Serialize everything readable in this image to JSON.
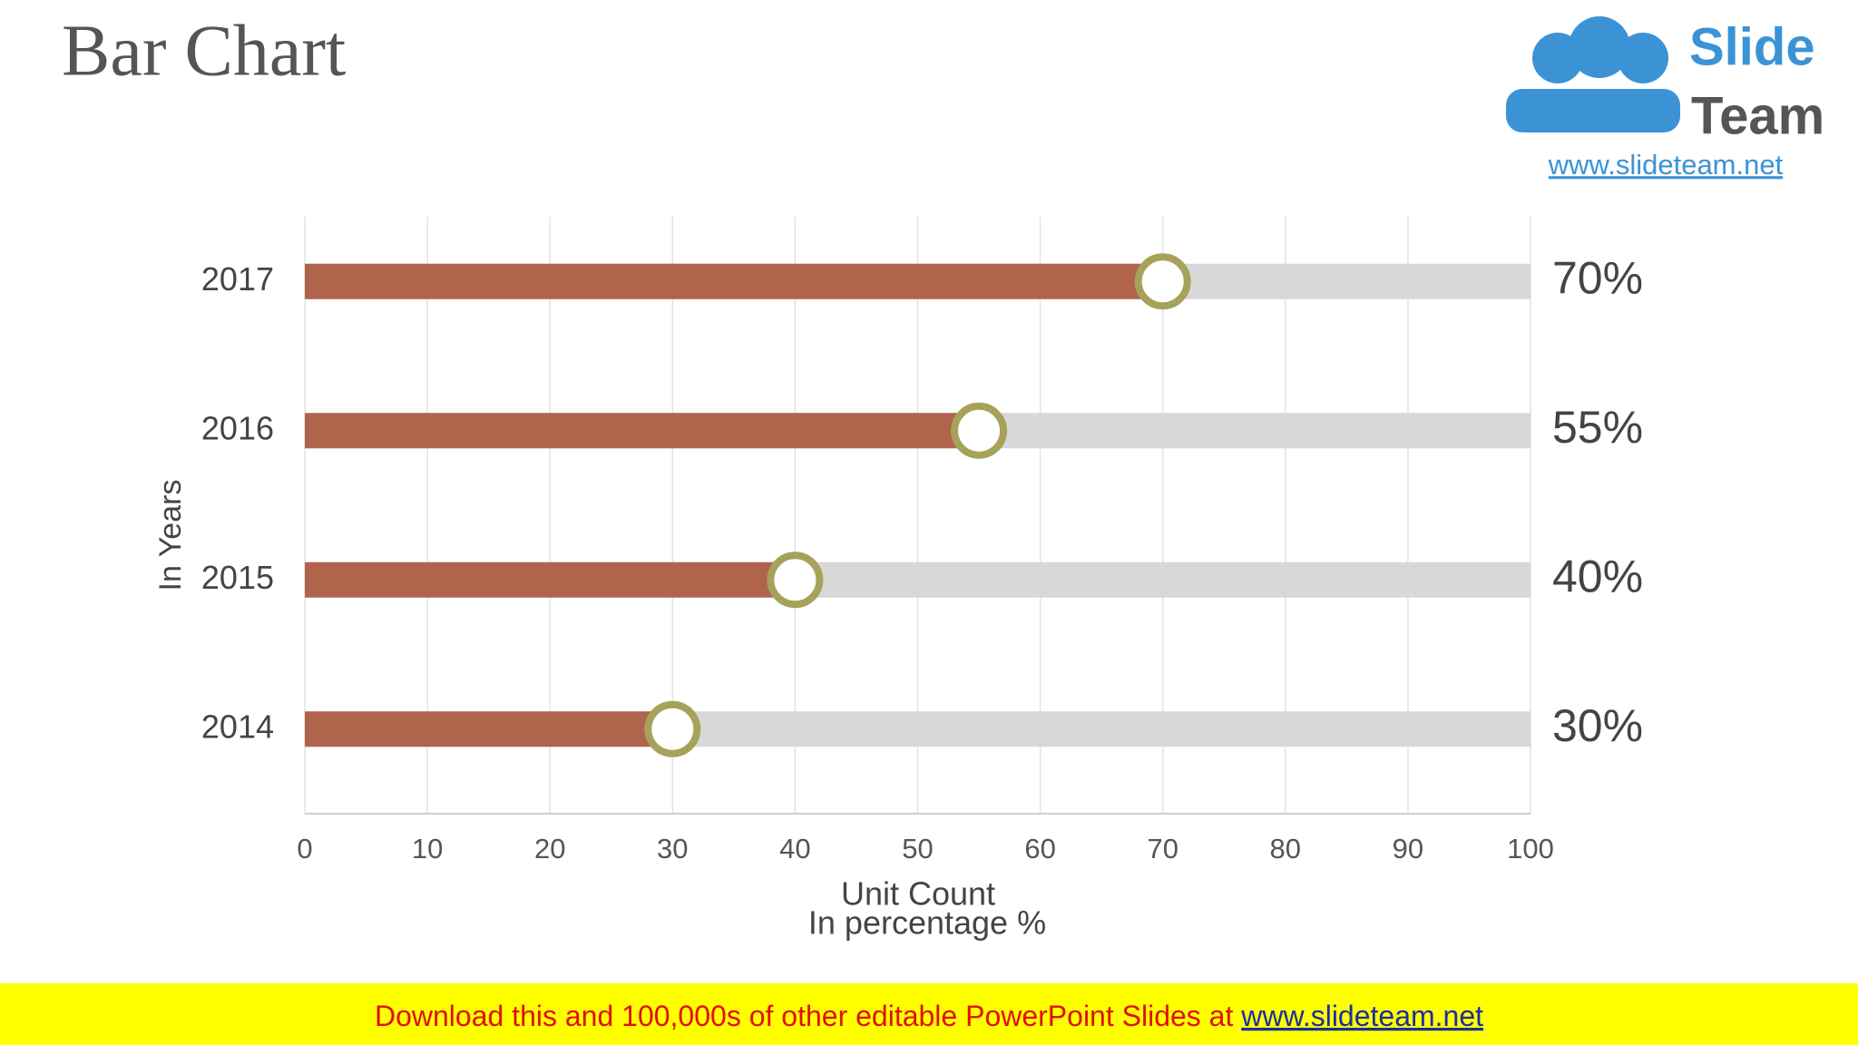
{
  "chart_data": {
    "type": "bar",
    "orientation": "horizontal",
    "title": "Bar Chart",
    "categories": [
      "2017",
      "2016",
      "2015",
      "2014"
    ],
    "values": [
      70,
      55,
      40,
      30
    ],
    "value_labels": [
      "70%",
      "55%",
      "40%",
      "30%"
    ],
    "color": "#b0644c",
    "track_color": "#d9d8d9",
    "marker_color": "#a6a25a",
    "xlim": [
      0,
      100
    ],
    "xticks": [
      0,
      10,
      20,
      30,
      40,
      50,
      60,
      70,
      80,
      90,
      100
    ],
    "grid": true,
    "xlabel": "Unit Count",
    "xlabel_2": "In percentage  %",
    "ylabel": "In Years"
  },
  "logo": {
    "word_1": "Slide",
    "word_2": "Team",
    "url": "www.slideteam.net"
  },
  "footer": {
    "text": "Download this and 100,000s of other editable PowerPoint Slides at ",
    "link": "www.slideteam.net"
  }
}
